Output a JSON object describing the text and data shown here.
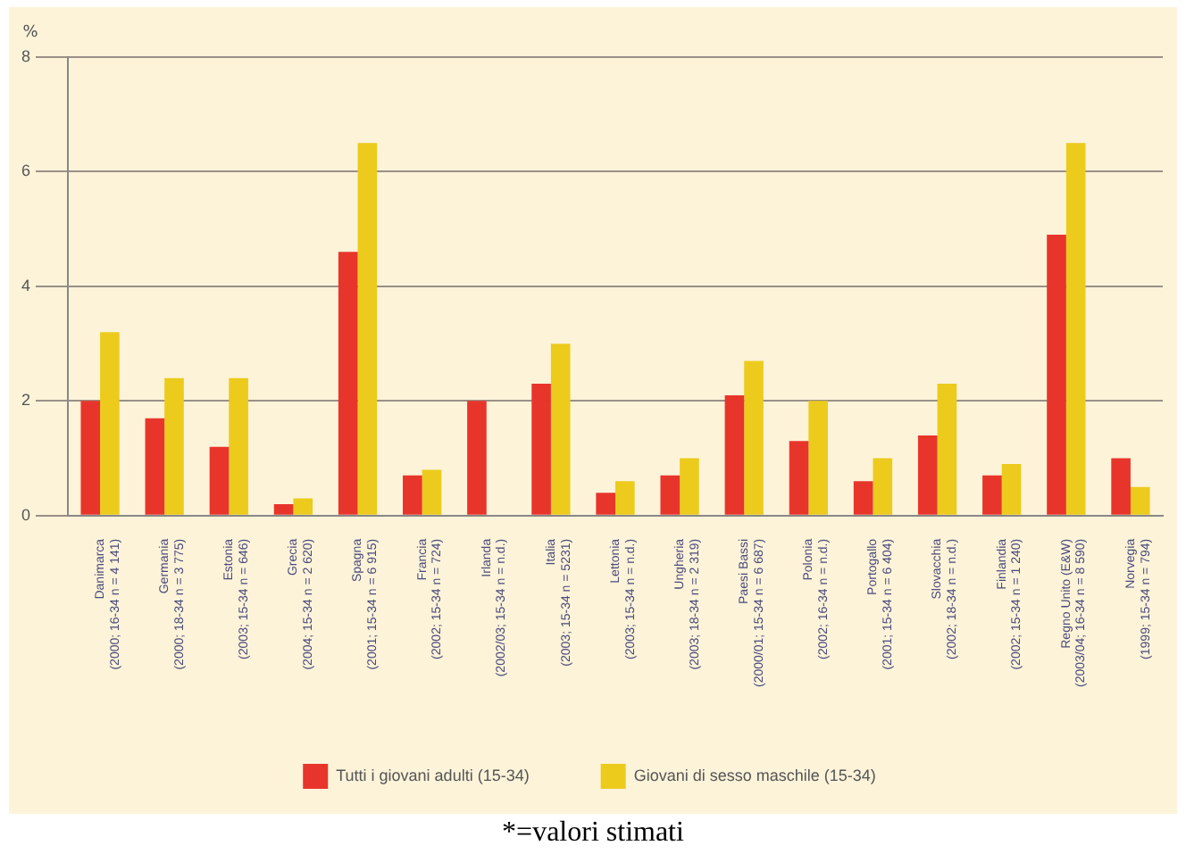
{
  "chart_data": {
    "type": "bar",
    "ylabel": "%",
    "categories": [
      "Danimarca\n(2000; 16-34 n = 4 141)",
      "Germania\n(2000; 18-34 n = 3 775)",
      "Estonia\n(2003; 15-34 n = 646)",
      "Grecia\n(2004; 15-34 n = 2 620)",
      "Spagna\n(2001; 15-34 n = 6 915)",
      "Francia\n(2002; 15-34 n = 724)",
      "Irlanda\n(2002/03; 15-34 n = n.d.)",
      "Italia\n(2003; 15-34 n = 5231)",
      "Lettonia\n(2003; 15-34 n = n.d.)",
      "Ungheria\n(2003; 18-34 n = 2 319)",
      "Paesi Bassi\n(2000/01; 15-34 n = 6 687)",
      "Polonia\n(2002; 16-34 n = n.d.)",
      "Portogallo\n(2001; 15-34 n = 6 404)",
      "Slovacchia\n(2002; 18-34 n = n.d.)",
      "Finlandia\n(2002; 15-34 n = 1 240)",
      "Regno Unito (E&W)\n(2003/04; 16-34 n = 8 590)",
      "Norvegia\n(1999; 15-34 n = 794)"
    ],
    "series": [
      {
        "name": "Tutti i giovani adulti (15-34)",
        "color": "#e8352b",
        "values": [
          2.0,
          1.7,
          1.2,
          0.2,
          4.6,
          0.7,
          2.0,
          2.3,
          0.4,
          0.7,
          2.1,
          1.3,
          0.6,
          1.4,
          0.7,
          4.9,
          1.0
        ]
      },
      {
        "name": "Giovani di sesso maschile (15-34)",
        "color": "#eccb1c",
        "values": [
          3.2,
          2.4,
          2.4,
          0.3,
          6.5,
          0.8,
          null,
          3.0,
          0.6,
          1.0,
          2.7,
          2.0,
          1.0,
          2.3,
          0.9,
          6.5,
          0.5
        ]
      }
    ],
    "ylim": [
      0,
      8
    ],
    "yticks": [
      0,
      2,
      4,
      6,
      8
    ],
    "grid": "y",
    "legend": "bottom",
    "annotations": [
      "*=valori stimati"
    ]
  }
}
